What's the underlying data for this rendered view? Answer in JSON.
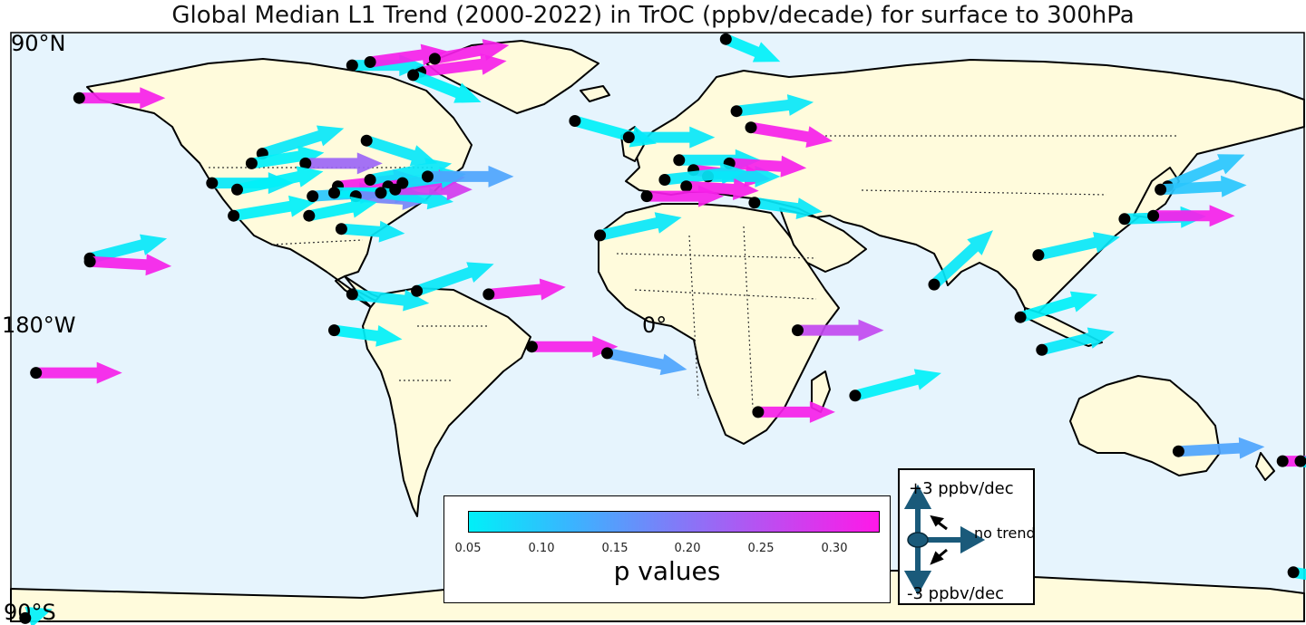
{
  "title": "Global Median L1 Trend (2000-2022) in TrOC (ppbv/decade) for surface to 300hPa",
  "axis_labels": {
    "top_left": "90°N",
    "bottom_left": "90°S",
    "left_mid": "180°W",
    "center": "0°"
  },
  "colorbar": {
    "label": "p values",
    "ticks": [
      "0.05",
      "0.10",
      "0.15",
      "0.20",
      "0.25",
      "0.30"
    ],
    "range": [
      0.05,
      0.33
    ],
    "colors": {
      "low": "#00f0f8",
      "high": "#ff18e8"
    }
  },
  "key_legend": {
    "plus_label": "+3 ppbv/dec",
    "minus_label": "-3 ppbv/dec",
    "center_label": "no trend"
  },
  "map_style": {
    "ocean_color": "#e6f4fd",
    "land_color": "#fffbdc",
    "station_color": "#000000"
  },
  "stations": [
    {
      "lon": -161,
      "lat": 70,
      "dx": 95,
      "dy": 0,
      "p": 0.32
    },
    {
      "lon": -110,
      "lat": 53,
      "dx": 90,
      "dy": -28,
      "p": 0.06
    },
    {
      "lon": -113,
      "lat": 50,
      "dx": 80,
      "dy": -12,
      "p": 0.05
    },
    {
      "lon": -98,
      "lat": 50,
      "dx": 85,
      "dy": 0,
      "p": 0.22
    },
    {
      "lon": -81,
      "lat": 57,
      "dx": 78,
      "dy": 25,
      "p": 0.06
    },
    {
      "lon": -124,
      "lat": 44,
      "dx": 90,
      "dy": 0,
      "p": 0.06
    },
    {
      "lon": -117,
      "lat": 42,
      "dx": 95,
      "dy": -20,
      "p": 0.05
    },
    {
      "lon": -118,
      "lat": 34,
      "dx": 90,
      "dy": -15,
      "p": 0.05
    },
    {
      "lon": -96,
      "lat": 40,
      "dx": 80,
      "dy": -5,
      "p": 0.1
    },
    {
      "lon": -89,
      "lat": 43,
      "dx": 90,
      "dy": -10,
      "p": 0.32
    },
    {
      "lon": -90,
      "lat": 41,
      "dx": 95,
      "dy": 0,
      "p": 0.05
    },
    {
      "lon": -84,
      "lat": 40,
      "dx": 80,
      "dy": 5,
      "p": 0.18
    },
    {
      "lon": -80,
      "lat": 45,
      "dx": 90,
      "dy": -18,
      "p": 0.06
    },
    {
      "lon": -75,
      "lat": 43,
      "dx": 85,
      "dy": -10,
      "p": 0.32
    },
    {
      "lon": -77,
      "lat": 41,
      "dx": 80,
      "dy": 10,
      "p": 0.06
    },
    {
      "lon": -73,
      "lat": 42,
      "dx": 85,
      "dy": 0,
      "p": 0.28
    },
    {
      "lon": -71,
      "lat": 44,
      "dx": 70,
      "dy": -10,
      "p": 0.06
    },
    {
      "lon": -64,
      "lat": 46,
      "dx": 95,
      "dy": 0,
      "p": 0.14
    },
    {
      "lon": -97,
      "lat": 34,
      "dx": 75,
      "dy": -15,
      "p": 0.05
    },
    {
      "lon": -88,
      "lat": 30,
      "dx": 70,
      "dy": 5,
      "p": 0.06
    },
    {
      "lon": -158,
      "lat": 21,
      "dx": 85,
      "dy": -22,
      "p": 0.06
    },
    {
      "lon": -158,
      "lat": 20,
      "dx": 90,
      "dy": 5,
      "p": 0.32
    },
    {
      "lon": -66,
      "lat": 78,
      "dx": 95,
      "dy": -12,
      "p": 0.32
    },
    {
      "lon": -85,
      "lat": 80,
      "dx": 80,
      "dy": 0,
      "p": 0.06
    },
    {
      "lon": -80,
      "lat": 81,
      "dx": 85,
      "dy": -12,
      "p": 0.32
    },
    {
      "lon": -62,
      "lat": 82,
      "dx": 82,
      "dy": -15,
      "p": 0.32
    },
    {
      "lon": -68,
      "lat": 77,
      "dx": 75,
      "dy": 30,
      "p": 0.05
    },
    {
      "lon": -85,
      "lat": 10,
      "dx": 85,
      "dy": 10,
      "p": 0.06
    },
    {
      "lon": -67,
      "lat": 11,
      "dx": 85,
      "dy": -30,
      "p": 0.06
    },
    {
      "lon": -47,
      "lat": 10,
      "dx": 85,
      "dy": -8,
      "p": 0.32
    },
    {
      "lon": -90,
      "lat": -1,
      "dx": 75,
      "dy": 10,
      "p": 0.05
    },
    {
      "lon": -35,
      "lat": -6,
      "dx": 95,
      "dy": 0,
      "p": 0.32
    },
    {
      "lon": -14,
      "lat": -8,
      "dx": 88,
      "dy": 18,
      "p": 0.14
    },
    {
      "lon": -173,
      "lat": -14,
      "dx": 95,
      "dy": 0,
      "p": 0.32
    },
    {
      "lon": -23,
      "lat": 63,
      "dx": 90,
      "dy": 25,
      "p": 0.05
    },
    {
      "lon": 19,
      "lat": 88,
      "dx": 60,
      "dy": 25,
      "p": 0.05
    },
    {
      "lon": -8,
      "lat": 58,
      "dx": 95,
      "dy": 0,
      "p": 0.06
    },
    {
      "lon": 22,
      "lat": 66,
      "dx": 85,
      "dy": -10,
      "p": 0.06
    },
    {
      "lon": 26,
      "lat": 61,
      "dx": 90,
      "dy": 15,
      "p": 0.32
    },
    {
      "lon": 6,
      "lat": 51,
      "dx": 90,
      "dy": 0,
      "p": 0.06
    },
    {
      "lon": 10,
      "lat": 48,
      "dx": 85,
      "dy": 10,
      "p": 0.32
    },
    {
      "lon": 14,
      "lat": 46,
      "dx": 80,
      "dy": 0,
      "p": 0.06
    },
    {
      "lon": 20,
      "lat": 50,
      "dx": 85,
      "dy": 5,
      "p": 0.32
    },
    {
      "lon": 2,
      "lat": 45,
      "dx": 90,
      "dy": -10,
      "p": 0.06
    },
    {
      "lon": 8,
      "lat": 43,
      "dx": 80,
      "dy": 5,
      "p": 0.32
    },
    {
      "lon": -3,
      "lat": 40,
      "dx": 85,
      "dy": 0,
      "p": 0.32
    },
    {
      "lon": 27,
      "lat": 38,
      "dx": 75,
      "dy": 10,
      "p": 0.06
    },
    {
      "lon": -16,
      "lat": 28,
      "dx": 90,
      "dy": -20,
      "p": 0.06
    },
    {
      "lon": 39,
      "lat": -1,
      "dx": 95,
      "dy": 0,
      "p": 0.26
    },
    {
      "lon": 28,
      "lat": -26,
      "dx": 85,
      "dy": 0,
      "p": 0.32
    },
    {
      "lon": 55,
      "lat": -21,
      "dx": 95,
      "dy": -25,
      "p": 0.05
    },
    {
      "lon": 77,
      "lat": 13,
      "dx": 65,
      "dy": -60,
      "p": 0.06
    },
    {
      "lon": 106,
      "lat": 22,
      "dx": 90,
      "dy": -20,
      "p": 0.06
    },
    {
      "lon": 101,
      "lat": 3,
      "dx": 85,
      "dy": -25,
      "p": 0.05
    },
    {
      "lon": 107,
      "lat": -7,
      "dx": 80,
      "dy": -20,
      "p": 0.06
    },
    {
      "lon": 142,
      "lat": 43,
      "dx": 85,
      "dy": -35,
      "p": 0.1
    },
    {
      "lon": 140,
      "lat": 42,
      "dx": 95,
      "dy": -5,
      "p": 0.1
    },
    {
      "lon": 130,
      "lat": 33,
      "dx": 90,
      "dy": -3,
      "p": 0.06
    },
    {
      "lon": 138,
      "lat": 34,
      "dx": 90,
      "dy": 0,
      "p": 0.32
    },
    {
      "lon": 145,
      "lat": -38,
      "dx": 95,
      "dy": -5,
      "p": 0.14
    },
    {
      "lon": 174,
      "lat": -41,
      "dx": 80,
      "dy": 0,
      "p": 0.32
    },
    {
      "lon": 179,
      "lat": -41,
      "dx": 60,
      "dy": 10,
      "p": 0.05
    },
    {
      "lon": 177,
      "lat": -75,
      "dx": 60,
      "dy": 10,
      "p": 0.05
    },
    {
      "lon": -176,
      "lat": -89,
      "dx": 30,
      "dy": -10,
      "p": 0.05
    }
  ]
}
